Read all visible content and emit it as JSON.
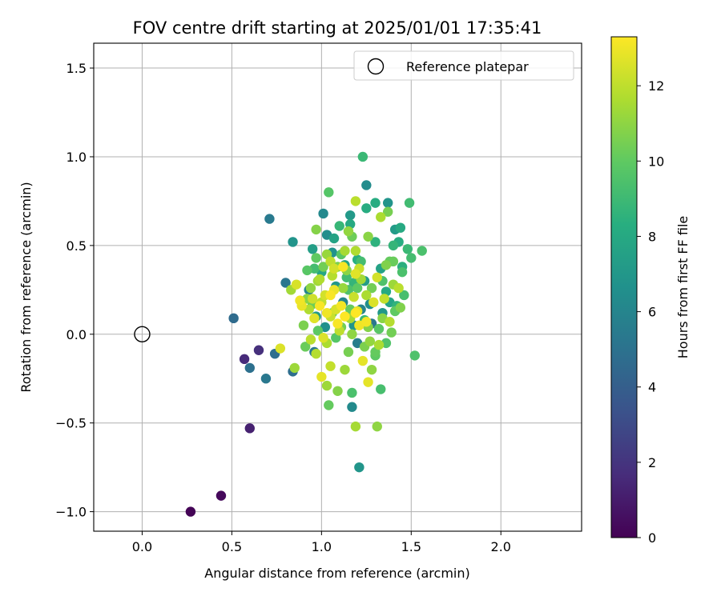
{
  "chart_data": {
    "type": "scatter",
    "title": "FOV centre drift starting at 2025/01/01 17:35:41",
    "xlabel": "Angular distance from reference (arcmin)",
    "ylabel": "Rotation from reference (arcmin)",
    "xlim": [
      -0.27,
      2.45
    ],
    "ylim": [
      -1.11,
      1.64
    ],
    "xticks": [
      0.0,
      0.5,
      1.0,
      1.5,
      2.0
    ],
    "xtick_labels": [
      "0.0",
      "0.5",
      "1.0",
      "1.5",
      "2.0"
    ],
    "yticks": [
      -1.0,
      -0.5,
      0.0,
      0.5,
      1.0,
      1.5
    ],
    "ytick_labels": [
      "−1.0",
      "−0.5",
      "0.0",
      "0.5",
      "1.0",
      "1.5"
    ],
    "grid": true,
    "legend": {
      "position": "top-right",
      "entries": [
        "Reference platepar"
      ]
    },
    "reference_point": {
      "x": 0.0,
      "y": 0.0,
      "label": "Reference platepar"
    },
    "colorbar": {
      "label": "Hours from first FF file",
      "min": 0,
      "max": 13.3,
      "ticks": [
        0,
        2,
        4,
        6,
        8,
        10,
        12
      ],
      "tick_labels": [
        "0",
        "2",
        "4",
        "6",
        "8",
        "10",
        "12"
      ],
      "colormap": "viridis"
    },
    "points": [
      [
        0.27,
        -1.0,
        0.1
      ],
      [
        0.44,
        -0.91,
        0.3
      ],
      [
        0.6,
        -0.53,
        1.2
      ],
      [
        0.57,
        -0.14,
        1.6
      ],
      [
        0.65,
        -0.09,
        1.8
      ],
      [
        0.51,
        0.09,
        4.6
      ],
      [
        0.6,
        -0.19,
        4.9
      ],
      [
        0.69,
        -0.25,
        5.3
      ],
      [
        0.74,
        -0.11,
        4.8
      ],
      [
        0.71,
        0.65,
        5.4
      ],
      [
        0.84,
        -0.21,
        4.8
      ],
      [
        0.8,
        0.29,
        5.2
      ],
      [
        0.84,
        0.52,
        6.8
      ],
      [
        0.96,
        -0.1,
        5.3
      ],
      [
        1.01,
        0.68,
        6.2
      ],
      [
        1.03,
        0.56,
        6.5
      ],
      [
        1.2,
        -0.05,
        5.6
      ],
      [
        1.22,
        0.14,
        5.9
      ],
      [
        1.25,
        0.84,
        6.4
      ],
      [
        1.37,
        0.74,
        6.8
      ],
      [
        1.41,
        0.59,
        7.2
      ],
      [
        1.28,
        0.06,
        5.2
      ],
      [
        1.17,
        -0.41,
        6.3
      ],
      [
        1.21,
        -0.75,
        6.9
      ],
      [
        1.23,
        1.0,
        8.9
      ],
      [
        1.3,
        0.74,
        8.2
      ],
      [
        1.16,
        0.67,
        7.1
      ],
      [
        1.06,
        0.46,
        6.7
      ],
      [
        1.12,
        0.18,
        6.0
      ],
      [
        1.34,
        0.12,
        7.0
      ],
      [
        1.44,
        0.6,
        8.0
      ],
      [
        1.49,
        0.74,
        9.1
      ],
      [
        1.5,
        0.43,
        9.2
      ],
      [
        1.56,
        0.47,
        9.4
      ],
      [
        1.52,
        -0.12,
        9.5
      ],
      [
        1.38,
        0.18,
        7.8
      ],
      [
        1.45,
        0.38,
        8.4
      ],
      [
        1.3,
        0.52,
        8.5
      ],
      [
        1.16,
        0.62,
        8.0
      ],
      [
        1.07,
        0.54,
        7.6
      ],
      [
        1.0,
        0.35,
        7.9
      ],
      [
        0.93,
        0.25,
        6.0
      ],
      [
        0.95,
        0.48,
        7.4
      ],
      [
        0.97,
        0.1,
        7.3
      ],
      [
        1.02,
        0.04,
        6.6
      ],
      [
        1.08,
        0.27,
        7.0
      ],
      [
        1.13,
        0.39,
        7.8
      ],
      [
        1.18,
        0.05,
        6.9
      ],
      [
        1.24,
        0.3,
        7.3
      ],
      [
        1.27,
        0.17,
        6.5
      ],
      [
        1.33,
        0.37,
        7.6
      ],
      [
        1.36,
        0.24,
        8.1
      ],
      [
        1.42,
        0.16,
        8.6
      ],
      [
        1.4,
        0.5,
        8.7
      ],
      [
        1.25,
        0.71,
        8.2
      ],
      [
        1.2,
        0.42,
        8.3
      ],
      [
        1.1,
        0.61,
        8.8
      ],
      [
        1.04,
        0.8,
        9.7
      ],
      [
        0.97,
        0.59,
        10.8
      ],
      [
        0.95,
        0.17,
        10.3
      ],
      [
        0.92,
        0.36,
        9.8
      ],
      [
        0.9,
        0.05,
        10.6
      ],
      [
        0.94,
        0.26,
        11.0
      ],
      [
        0.98,
        0.3,
        11.4
      ],
      [
        1.0,
        0.18,
        12.0
      ],
      [
        1.02,
        0.22,
        12.4
      ],
      [
        1.05,
        0.1,
        12.2
      ],
      [
        1.03,
        -0.05,
        11.6
      ],
      [
        1.06,
        0.33,
        11.8
      ],
      [
        1.08,
        0.14,
        12.5
      ],
      [
        1.1,
        0.02,
        12.0
      ],
      [
        1.12,
        0.26,
        11.2
      ],
      [
        1.14,
        0.36,
        10.9
      ],
      [
        1.16,
        0.09,
        11.5
      ],
      [
        1.18,
        0.21,
        12.2
      ],
      [
        1.2,
        0.13,
        12.8
      ],
      [
        1.22,
        0.31,
        11.4
      ],
      [
        1.24,
        -0.07,
        10.6
      ],
      [
        1.26,
        0.04,
        10.8
      ],
      [
        1.28,
        0.26,
        10.4
      ],
      [
        1.3,
        -0.1,
        10.1
      ],
      [
        1.32,
        0.03,
        9.8
      ],
      [
        1.34,
        0.3,
        9.5
      ],
      [
        1.36,
        -0.05,
        9.6
      ],
      [
        1.38,
        0.41,
        10.1
      ],
      [
        1.4,
        0.28,
        11.3
      ],
      [
        1.43,
        0.26,
        11.9
      ],
      [
        1.44,
        0.15,
        10.7
      ],
      [
        1.38,
        0.07,
        11.8
      ],
      [
        1.35,
        0.2,
        12.1
      ],
      [
        1.31,
        0.32,
        12.4
      ],
      [
        1.29,
        0.18,
        12.6
      ],
      [
        1.27,
        -0.04,
        11.1
      ],
      [
        1.25,
        0.22,
        11.6
      ],
      [
        1.23,
        -0.15,
        12.8
      ],
      [
        1.21,
        0.05,
        13.0
      ],
      [
        1.19,
        0.34,
        12.7
      ],
      [
        1.17,
        0.0,
        11.0
      ],
      [
        1.15,
        -0.1,
        10.5
      ],
      [
        1.13,
        -0.2,
        11.3
      ],
      [
        1.11,
        0.16,
        13.1
      ],
      [
        1.09,
        0.06,
        13.2
      ],
      [
        1.07,
        0.25,
        12.9
      ],
      [
        1.05,
        -0.18,
        12.1
      ],
      [
        1.03,
        0.12,
        13.0
      ],
      [
        1.01,
        -0.02,
        12.6
      ],
      [
        0.99,
        0.16,
        13.2
      ],
      [
        0.97,
        -0.11,
        11.8
      ],
      [
        0.95,
        0.2,
        12.3
      ],
      [
        0.93,
        0.14,
        11.7
      ],
      [
        0.91,
        -0.07,
        10.2
      ],
      [
        0.89,
        0.16,
        12.9
      ],
      [
        0.88,
        0.19,
        13.0
      ],
      [
        0.86,
        0.28,
        12.5
      ],
      [
        0.83,
        0.25,
        11.4
      ],
      [
        0.85,
        -0.19,
        11.3
      ],
      [
        0.77,
        -0.08,
        12.6
      ],
      [
        1.0,
        -0.24,
        12.8
      ],
      [
        1.03,
        -0.29,
        11.3
      ],
      [
        1.04,
        -0.4,
        10.1
      ],
      [
        1.09,
        -0.32,
        10.8
      ],
      [
        1.17,
        -0.33,
        9.4
      ],
      [
        1.19,
        -0.52,
        11.5
      ],
      [
        1.31,
        -0.52,
        11.0
      ],
      [
        1.33,
        -0.31,
        9.3
      ],
      [
        1.26,
        -0.27,
        12.8
      ],
      [
        1.28,
        -0.2,
        11.0
      ],
      [
        1.3,
        -0.12,
        9.9
      ],
      [
        1.32,
        -0.06,
        11.6
      ],
      [
        1.34,
        0.09,
        10.9
      ],
      [
        1.21,
        0.37,
        12.2
      ],
      [
        1.19,
        0.47,
        11.7
      ],
      [
        1.17,
        0.55,
        10.3
      ],
      [
        1.15,
        0.58,
        11.1
      ],
      [
        1.13,
        0.47,
        11.5
      ],
      [
        1.11,
        0.45,
        9.8
      ],
      [
        1.09,
        0.38,
        10.6
      ],
      [
        1.07,
        0.37,
        12.4
      ],
      [
        1.05,
        0.41,
        12.0
      ],
      [
        1.03,
        0.45,
        11.2
      ],
      [
        1.01,
        0.38,
        10.4
      ],
      [
        0.99,
        0.31,
        11.7
      ],
      [
        0.97,
        0.43,
        10.0
      ],
      [
        1.19,
        0.75,
        11.9
      ],
      [
        1.26,
        0.55,
        10.9
      ],
      [
        1.33,
        0.66,
        11.6
      ],
      [
        1.37,
        0.69,
        10.5
      ],
      [
        1.4,
        0.41,
        10.2
      ],
      [
        1.36,
        0.39,
        10.7
      ],
      [
        1.45,
        0.35,
        9.4
      ],
      [
        1.48,
        0.48,
        8.9
      ],
      [
        1.43,
        0.52,
        8.2
      ],
      [
        1.46,
        0.22,
        9.3
      ],
      [
        1.41,
        0.13,
        10.0
      ],
      [
        1.39,
        0.01,
        10.4
      ],
      [
        1.2,
        0.26,
        9.9
      ],
      [
        1.14,
        0.32,
        9.1
      ],
      [
        1.06,
        0.12,
        10.2
      ],
      [
        1.08,
        -0.02,
        9.7
      ],
      [
        1.11,
        0.04,
        10.4
      ],
      [
        1.16,
        0.14,
        10.1
      ],
      [
        1.18,
        0.29,
        8.7
      ],
      [
        1.22,
        0.41,
        9.2
      ],
      [
        1.24,
        0.08,
        8.8
      ],
      [
        1.15,
        0.25,
        9.5
      ],
      [
        0.98,
        0.02,
        9.9
      ],
      [
        0.96,
        0.37,
        9.2
      ],
      [
        0.92,
        0.2,
        10.9
      ],
      [
        0.94,
        -0.03,
        11.9
      ],
      [
        0.96,
        0.09,
        12.7
      ],
      [
        1.12,
        0.38,
        13.2
      ],
      [
        1.05,
        0.22,
        13.2
      ],
      [
        1.13,
        0.1,
        13.3
      ],
      [
        1.19,
        0.12,
        13.3
      ],
      [
        1.25,
        0.07,
        13.1
      ]
    ]
  }
}
